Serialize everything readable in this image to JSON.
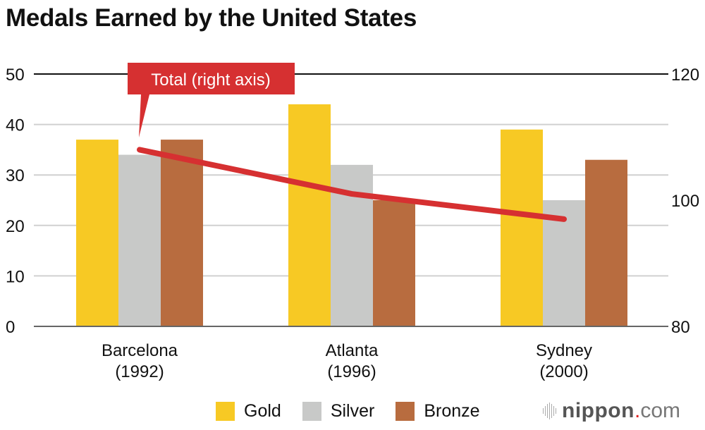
{
  "chart_data": {
    "type": "bar",
    "title": "Medals Earned by the United States",
    "categories": [
      [
        "Barcelona",
        "(1992)"
      ],
      [
        "Atlanta",
        "(1996)"
      ],
      [
        "Sydney",
        "(2000)"
      ]
    ],
    "series": [
      {
        "name": "Gold",
        "color": "#f7c924",
        "values": [
          37,
          44,
          39
        ]
      },
      {
        "name": "Silver",
        "color": "#c8c9c8",
        "values": [
          34,
          32,
          25
        ]
      },
      {
        "name": "Bronze",
        "color": "#b86c3f",
        "values": [
          37,
          25,
          33
        ]
      }
    ],
    "line_series": {
      "name": "Total",
      "axis": "right",
      "color": "#d63031",
      "values": [
        108,
        101,
        97
      ]
    },
    "annotation": "Total (right axis)",
    "left_axis": {
      "ylim": [
        0,
        50
      ],
      "ticks": [
        0,
        10,
        20,
        30,
        40,
        50
      ]
    },
    "right_axis": {
      "ylim": [
        80,
        120
      ],
      "ticks": [
        80,
        100,
        120
      ]
    },
    "grid": true,
    "legend": "bottom"
  },
  "brand": {
    "name": "nippon",
    "dot": ".",
    "suffix": "com"
  }
}
